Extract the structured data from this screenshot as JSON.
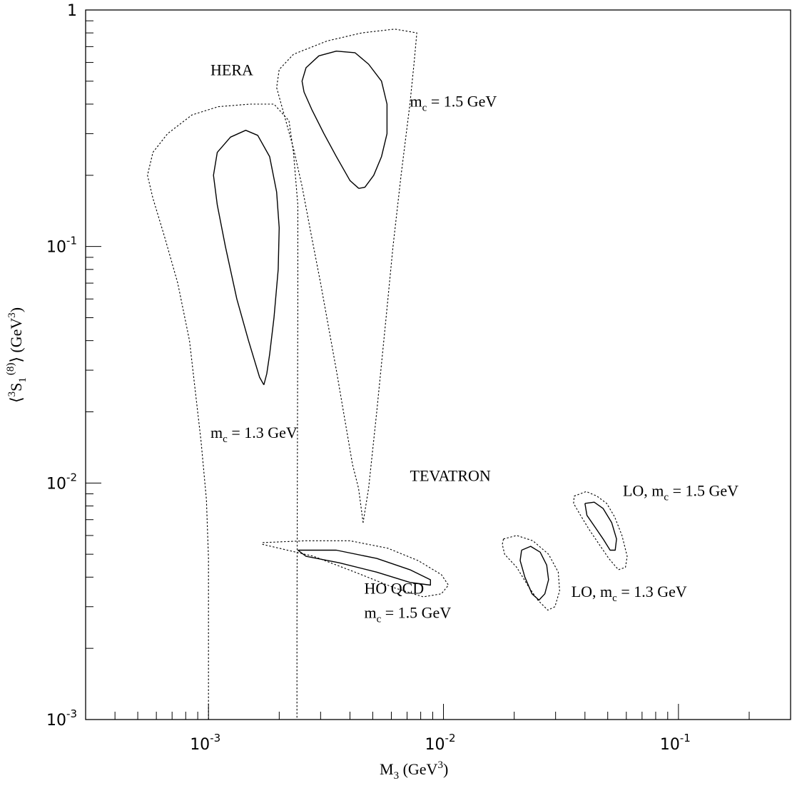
{
  "chart_data": {
    "type": "contour",
    "xscale": "log",
    "yscale": "log",
    "xlim": [
      0.0003,
      0.3
    ],
    "ylim": [
      0.001,
      1
    ],
    "grid": false,
    "x_ticks": [
      {
        "value": 0.001,
        "base": "10",
        "exp": "-3"
      },
      {
        "value": 0.01,
        "base": "10",
        "exp": "-2"
      },
      {
        "value": 0.1,
        "base": "10",
        "exp": "-1"
      }
    ],
    "y_ticks": [
      {
        "value": 0.001,
        "base": "10",
        "exp": "-3"
      },
      {
        "value": 0.01,
        "base": "10",
        "exp": "-2"
      },
      {
        "value": 0.1,
        "base": "10",
        "exp": "-1"
      },
      {
        "value": 1,
        "base": "1",
        "exp": ""
      }
    ],
    "xlabel": {
      "main": "M",
      "sub": "3",
      "units_open": "  (GeV",
      "units_sup": "3",
      "units_close": ")"
    },
    "ylabel": {
      "open": "⟨",
      "pre_sup": "3",
      "main": "S",
      "sub": "1",
      "sup": "(8)",
      "close": "⟩",
      "units_open": " (GeV",
      "units_sup": "3",
      "units_close": ")"
    },
    "annotations": [
      {
        "id": "hera",
        "lines": [
          {
            "text": "HERA"
          }
        ],
        "x": 0.00102,
        "y": 0.53
      },
      {
        "id": "mc15-hera",
        "lines": [
          {
            "pre": "m",
            "sub": "c",
            "post": " = 1.5 GeV"
          }
        ],
        "x": 0.0072,
        "y": 0.39
      },
      {
        "id": "mc13-hera",
        "lines": [
          {
            "pre": "m",
            "sub": "c",
            "post": " = 1.3 GeV"
          }
        ],
        "x": 0.00102,
        "y": 0.0155
      },
      {
        "id": "tevatron",
        "lines": [
          {
            "text": "TEVATRON"
          }
        ],
        "x": 0.0072,
        "y": 0.0102
      },
      {
        "id": "lo-15",
        "lines": [
          {
            "pre": "LO,  m",
            "sub": "c",
            "post": " = 1.5 GeV"
          }
        ],
        "x": 0.058,
        "y": 0.0088
      },
      {
        "id": "lo-13",
        "lines": [
          {
            "pre": "LO,  m",
            "sub": "c",
            "post": " = 1.3 GeV"
          }
        ],
        "x": 0.035,
        "y": 0.0033
      },
      {
        "id": "ho-qcd",
        "lines": [
          {
            "text": "HO QCD"
          },
          {
            "pre": "m",
            "sub": "c",
            "post": " = 1.5 GeV"
          }
        ],
        "x": 0.0046,
        "y": 0.0034
      }
    ],
    "series": [
      {
        "id": "hera-mc13-solid",
        "style": "solid",
        "points": [
          [
            0.00172,
            0.026
          ],
          [
            0.00165,
            0.028
          ],
          [
            0.00148,
            0.04
          ],
          [
            0.00132,
            0.06
          ],
          [
            0.00118,
            0.1
          ],
          [
            0.00109,
            0.15
          ],
          [
            0.00105,
            0.2
          ],
          [
            0.00109,
            0.25
          ],
          [
            0.00124,
            0.29
          ],
          [
            0.00144,
            0.31
          ],
          [
            0.00162,
            0.295
          ],
          [
            0.00182,
            0.24
          ],
          [
            0.00195,
            0.17
          ],
          [
            0.002,
            0.12
          ],
          [
            0.00198,
            0.08
          ],
          [
            0.0019,
            0.05
          ],
          [
            0.00182,
            0.035
          ],
          [
            0.00177,
            0.029
          ],
          [
            0.00172,
            0.026
          ]
        ]
      },
      {
        "id": "hera-mc15-solid",
        "style": "solid",
        "points": [
          [
            0.00436,
            0.176
          ],
          [
            0.00463,
            0.178
          ],
          [
            0.00505,
            0.2
          ],
          [
            0.00545,
            0.24
          ],
          [
            0.00575,
            0.3
          ],
          [
            0.00575,
            0.4
          ],
          [
            0.00545,
            0.5
          ],
          [
            0.0048,
            0.59
          ],
          [
            0.0042,
            0.66
          ],
          [
            0.0035,
            0.67
          ],
          [
            0.00295,
            0.64
          ],
          [
            0.0026,
            0.57
          ],
          [
            0.0025,
            0.5
          ],
          [
            0.00255,
            0.45
          ],
          [
            0.00275,
            0.38
          ],
          [
            0.0031,
            0.3
          ],
          [
            0.0035,
            0.24
          ],
          [
            0.004,
            0.19
          ],
          [
            0.00436,
            0.176
          ]
        ]
      },
      {
        "id": "hera-mc13-dotted",
        "style": "dotted",
        "points": [
          [
            0.001,
            0.001
          ],
          [
            0.001,
            0.0048
          ],
          [
            0.00098,
            0.0085
          ],
          [
            0.00093,
            0.015
          ],
          [
            0.00083,
            0.04
          ],
          [
            0.00074,
            0.07
          ],
          [
            0.00065,
            0.11
          ],
          [
            0.00058,
            0.16
          ],
          [
            0.00055,
            0.2
          ],
          [
            0.00058,
            0.25
          ],
          [
            0.00067,
            0.3
          ],
          [
            0.00085,
            0.36
          ],
          [
            0.0011,
            0.39
          ],
          [
            0.0015,
            0.4
          ],
          [
            0.0019,
            0.4
          ],
          [
            0.0022,
            0.34
          ],
          [
            0.0023,
            0.25
          ],
          [
            0.0024,
            0.15
          ],
          [
            0.0024,
            0.06
          ],
          [
            0.00238,
            0.0025
          ],
          [
            0.00238,
            0.001
          ]
        ]
      },
      {
        "id": "hera-mc15-dotted",
        "style": "dotted",
        "points": [
          [
            0.00455,
            0.0068
          ],
          [
            0.00435,
            0.0095
          ],
          [
            0.0041,
            0.012
          ],
          [
            0.0039,
            0.016
          ],
          [
            0.0035,
            0.03
          ],
          [
            0.003,
            0.07
          ],
          [
            0.0027,
            0.12
          ],
          [
            0.0025,
            0.18
          ],
          [
            0.0023,
            0.26
          ],
          [
            0.0021,
            0.36
          ],
          [
            0.00195,
            0.47
          ],
          [
            0.002,
            0.56
          ],
          [
            0.0023,
            0.65
          ],
          [
            0.0032,
            0.74
          ],
          [
            0.0045,
            0.8
          ],
          [
            0.0062,
            0.83
          ],
          [
            0.0077,
            0.8
          ],
          [
            0.0075,
            0.6
          ],
          [
            0.0072,
            0.4
          ],
          [
            0.0066,
            0.2
          ],
          [
            0.0061,
            0.1
          ],
          [
            0.0057,
            0.05
          ],
          [
            0.0052,
            0.02
          ],
          [
            0.0048,
            0.0095
          ],
          [
            0.00455,
            0.0068
          ]
        ]
      },
      {
        "id": "ho-qcd-solid",
        "style": "solid",
        "points": [
          [
            0.0024,
            0.0052
          ],
          [
            0.0035,
            0.0052
          ],
          [
            0.0052,
            0.0048
          ],
          [
            0.0072,
            0.0043
          ],
          [
            0.0088,
            0.0039
          ],
          [
            0.0088,
            0.0037
          ],
          [
            0.0072,
            0.0038
          ],
          [
            0.0052,
            0.0042
          ],
          [
            0.0036,
            0.0046
          ],
          [
            0.0026,
            0.0049
          ],
          [
            0.0024,
            0.0052
          ]
        ]
      },
      {
        "id": "ho-qcd-dotted",
        "style": "dotted",
        "points": [
          [
            0.0017,
            0.0056
          ],
          [
            0.0026,
            0.0057
          ],
          [
            0.004,
            0.0057
          ],
          [
            0.0058,
            0.0053
          ],
          [
            0.0078,
            0.0047
          ],
          [
            0.0098,
            0.0041
          ],
          [
            0.0105,
            0.0037
          ],
          [
            0.0098,
            0.0034
          ],
          [
            0.0082,
            0.0033
          ],
          [
            0.0062,
            0.0036
          ],
          [
            0.0042,
            0.0042
          ],
          [
            0.0028,
            0.0049
          ],
          [
            0.002,
            0.0053
          ],
          [
            0.0017,
            0.0055
          ],
          [
            0.0017,
            0.0056
          ]
        ]
      },
      {
        "id": "lo-mc13-solid",
        "style": "solid",
        "points": [
          [
            0.0215,
            0.0052
          ],
          [
            0.0235,
            0.0054
          ],
          [
            0.0258,
            0.0051
          ],
          [
            0.0275,
            0.0045
          ],
          [
            0.028,
            0.0039
          ],
          [
            0.027,
            0.0034
          ],
          [
            0.0255,
            0.0032
          ],
          [
            0.0238,
            0.0034
          ],
          [
            0.0222,
            0.004
          ],
          [
            0.0212,
            0.0047
          ],
          [
            0.0215,
            0.0052
          ]
        ]
      },
      {
        "id": "lo-mc13-dotted",
        "style": "dotted",
        "points": [
          [
            0.018,
            0.0058
          ],
          [
            0.0205,
            0.006
          ],
          [
            0.024,
            0.0057
          ],
          [
            0.028,
            0.005
          ],
          [
            0.0308,
            0.0042
          ],
          [
            0.0312,
            0.0035
          ],
          [
            0.0298,
            0.003
          ],
          [
            0.0278,
            0.0029
          ],
          [
            0.0252,
            0.0032
          ],
          [
            0.0228,
            0.0037
          ],
          [
            0.0205,
            0.0044
          ],
          [
            0.0182,
            0.005
          ],
          [
            0.0178,
            0.0055
          ],
          [
            0.018,
            0.0058
          ]
        ]
      },
      {
        "id": "lo-mc15-solid",
        "style": "solid",
        "points": [
          [
            0.04,
            0.0082
          ],
          [
            0.0438,
            0.0083
          ],
          [
            0.0478,
            0.0078
          ],
          [
            0.052,
            0.0068
          ],
          [
            0.0545,
            0.0058
          ],
          [
            0.0538,
            0.0052
          ],
          [
            0.0512,
            0.0052
          ],
          [
            0.0478,
            0.0058
          ],
          [
            0.0442,
            0.0065
          ],
          [
            0.0408,
            0.0073
          ],
          [
            0.04,
            0.0082
          ]
        ]
      },
      {
        "id": "lo-mc15-dotted",
        "style": "dotted",
        "points": [
          [
            0.036,
            0.0088
          ],
          [
            0.0405,
            0.0092
          ],
          [
            0.045,
            0.0088
          ],
          [
            0.0495,
            0.0082
          ],
          [
            0.0535,
            0.0072
          ],
          [
            0.0575,
            0.006
          ],
          [
            0.0605,
            0.0049
          ],
          [
            0.0595,
            0.0044
          ],
          [
            0.0555,
            0.0043
          ],
          [
            0.0505,
            0.0048
          ],
          [
            0.046,
            0.0055
          ],
          [
            0.0415,
            0.0064
          ],
          [
            0.038,
            0.0074
          ],
          [
            0.0358,
            0.0082
          ],
          [
            0.036,
            0.0088
          ]
        ]
      }
    ]
  }
}
